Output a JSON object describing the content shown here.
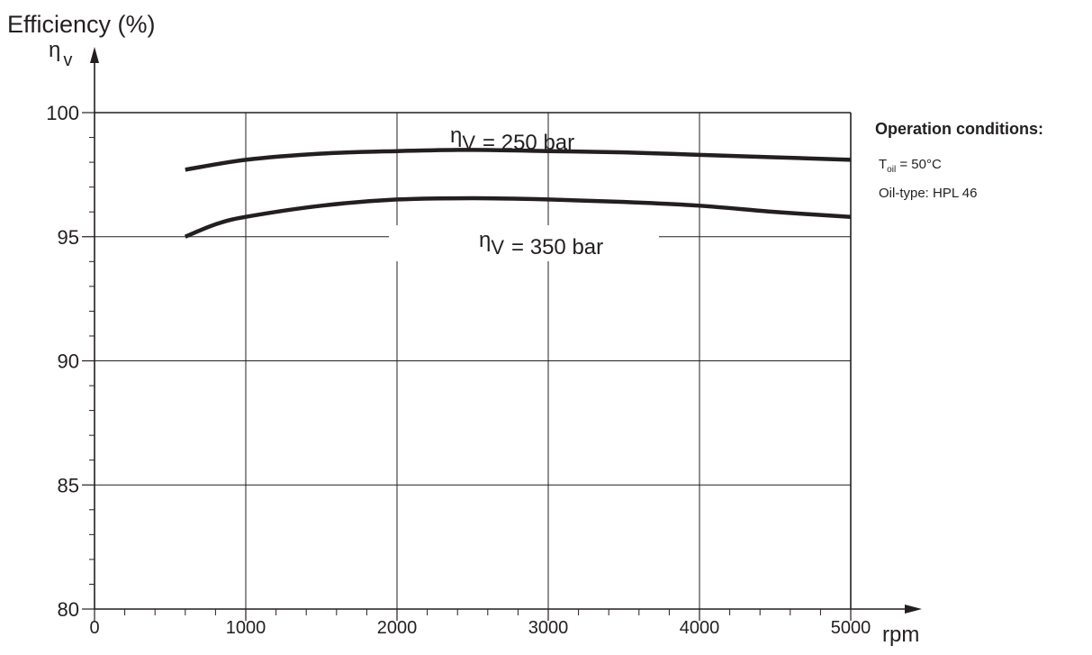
{
  "chart_data": {
    "type": "line",
    "title": "",
    "ylabel": "Efficiency (%)",
    "ysymbol": "η",
    "ysymbol_sub": "v",
    "xlabel": "rpm",
    "xlim": [
      0,
      5000
    ],
    "ylim": [
      80,
      100
    ],
    "xticks": [
      "0",
      "1000",
      "2000",
      "3000",
      "4000",
      "5000"
    ],
    "yticks": [
      "80",
      "85",
      "90",
      "95",
      "100"
    ],
    "grid": true,
    "series": [
      {
        "name": "= 250 bar",
        "label_symbol": "η",
        "label_sub": "V",
        "x": [
          600,
          1000,
          1500,
          2000,
          2500,
          3000,
          3500,
          4000,
          4500,
          5000
        ],
        "y": [
          97.7,
          98.1,
          98.35,
          98.45,
          98.5,
          98.45,
          98.4,
          98.3,
          98.2,
          98.1
        ]
      },
      {
        "name": "= 350 bar",
        "label_symbol": "η",
        "label_sub": "V",
        "x": [
          600,
          800,
          1000,
          1500,
          2000,
          2500,
          3000,
          3500,
          4000,
          4500,
          5000
        ],
        "y": [
          95.0,
          95.5,
          95.8,
          96.25,
          96.5,
          96.55,
          96.5,
          96.4,
          96.25,
          96.0,
          95.8
        ]
      }
    ]
  },
  "conditions": {
    "title": "Operation conditions:",
    "temp_symbol": "T",
    "temp_sub": "oil",
    "temp_value": "= 50°C",
    "oil_type": "Oil-type: HPL 46"
  }
}
